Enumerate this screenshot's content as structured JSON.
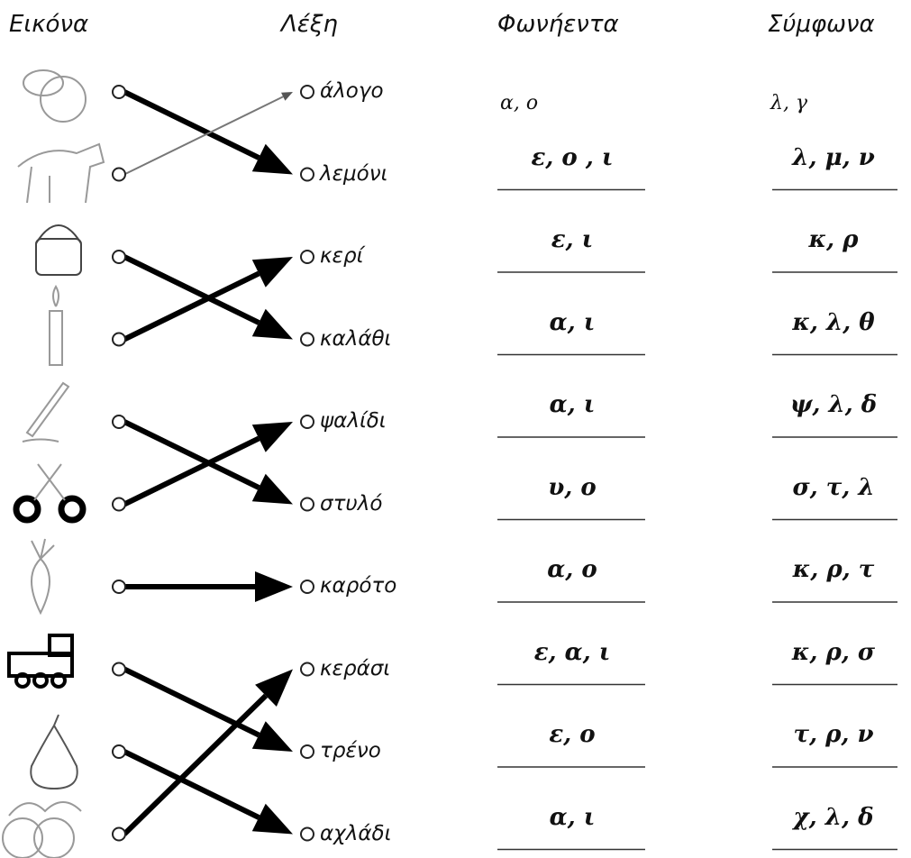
{
  "headers": [
    "Εικόνα",
    "Λέξη",
    "Φωνήεντα",
    "Σύμφωνα"
  ],
  "words": [
    "άλογο",
    "λεμόνι",
    "κερί",
    "καλάθι",
    "ψαλίδι",
    "στυλό",
    "καρότο",
    "κεράσι",
    "τρένο",
    "αχλάδι"
  ],
  "vowels": [
    "α, ο",
    "ε, ο , ι",
    "ε, ι",
    "α, ι",
    "α, ι",
    "υ, ο",
    "α, ο",
    "ε, α, ι",
    "ε, ο",
    "α, ι"
  ],
  "consonants": [
    "λ, γ",
    "λ, μ, ν",
    "κ, ρ",
    "κ, λ, θ",
    "ψ, λ, δ",
    "σ, τ, λ",
    "κ, ρ, τ",
    "κ, ρ, σ",
    "τ, ρ, ν",
    "χ, λ, δ"
  ]
}
